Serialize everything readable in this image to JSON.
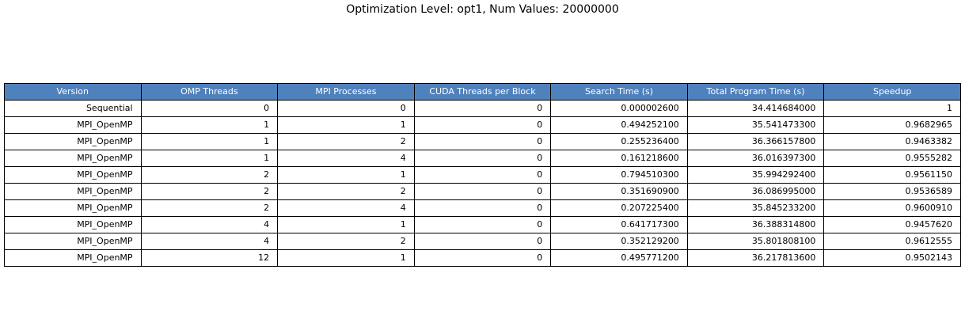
{
  "title": "Optimization Level: opt1, Num Values: 20000000",
  "colors": {
    "header_background": "#4f81bd",
    "header_text": "#ffffff",
    "border": "#000000"
  },
  "chart_data": {
    "type": "table",
    "title": "Optimization Level: opt1, Num Values: 20000000",
    "columns": [
      "Version",
      "OMP Threads",
      "MPI Processes",
      "CUDA Threads per Block",
      "Search Time (s)",
      "Total Program Time (s)",
      "Speedup"
    ],
    "rows": [
      [
        "Sequential",
        "0",
        "0",
        "0",
        "0.000002600",
        "34.414684000",
        "1"
      ],
      [
        "MPI_OpenMP",
        "1",
        "1",
        "0",
        "0.494252100",
        "35.541473300",
        "0.9682965"
      ],
      [
        "MPI_OpenMP",
        "1",
        "2",
        "0",
        "0.255236400",
        "36.366157800",
        "0.9463382"
      ],
      [
        "MPI_OpenMP",
        "1",
        "4",
        "0",
        "0.161218600",
        "36.016397300",
        "0.9555282"
      ],
      [
        "MPI_OpenMP",
        "2",
        "1",
        "0",
        "0.794510300",
        "35.994292400",
        "0.9561150"
      ],
      [
        "MPI_OpenMP",
        "2",
        "2",
        "0",
        "0.351690900",
        "36.086995000",
        "0.9536589"
      ],
      [
        "MPI_OpenMP",
        "2",
        "4",
        "0",
        "0.207225400",
        "35.845233200",
        "0.9600910"
      ],
      [
        "MPI_OpenMP",
        "4",
        "1",
        "0",
        "0.641717300",
        "36.388314800",
        "0.9457620"
      ],
      [
        "MPI_OpenMP",
        "4",
        "2",
        "0",
        "0.352129200",
        "35.801808100",
        "0.9612555"
      ],
      [
        "MPI_OpenMP",
        "12",
        "1",
        "0",
        "0.495771200",
        "36.217813600",
        "0.9502143"
      ]
    ]
  }
}
